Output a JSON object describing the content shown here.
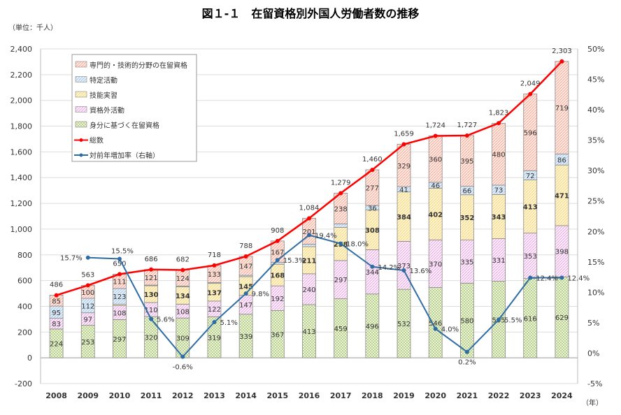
{
  "chart_data": {
    "type": "bar",
    "title": "図１-１　在留資格別外国人労働者数の推移",
    "unit_label": "（単位：千人）",
    "x_unit": "（年）",
    "categories": [
      "2008",
      "2009",
      "2010",
      "2011",
      "2012",
      "2013",
      "2014",
      "2015",
      "2016",
      "2017",
      "2018",
      "2019",
      "2020",
      "2021",
      "2022",
      "2023",
      "2024"
    ],
    "ylim": [
      -200,
      2400
    ],
    "y_ticks": [
      -200,
      0,
      200,
      400,
      600,
      800,
      1000,
      1200,
      1400,
      1600,
      1800,
      2000,
      2200,
      2400
    ],
    "y2lim": [
      -5,
      50
    ],
    "y2_ticks": [
      -5,
      0,
      5,
      10,
      15,
      20,
      25,
      30,
      35,
      40,
      45,
      50
    ],
    "legend_position": "top-left",
    "grid": true,
    "stacked_series": [
      {
        "name": "身分に基づく在留資格",
        "color": "#9bbb59",
        "values": [
          224,
          253,
          297,
          320,
          309,
          319,
          339,
          367,
          413,
          459,
          496,
          532,
          546,
          580,
          595,
          616,
          629
        ],
        "labeled": [
          true,
          true,
          true,
          true,
          true,
          true,
          true,
          true,
          true,
          true,
          true,
          true,
          true,
          true,
          true,
          true,
          true
        ]
      },
      {
        "name": "資格外活動",
        "color": "#e59edd",
        "values": [
          83,
          97,
          108,
          110,
          108,
          122,
          147,
          192,
          240,
          297,
          344,
          373,
          370,
          335,
          331,
          353,
          398
        ],
        "labeled": [
          true,
          true,
          true,
          true,
          true,
          true,
          true,
          true,
          true,
          true,
          true,
          true,
          true,
          true,
          true,
          true,
          true
        ]
      },
      {
        "name": "技能実習",
        "color": "#f2d675",
        "values": [
          0,
          0,
          11,
          130,
          134,
          137,
          145,
          168,
          211,
          258,
          308,
          384,
          402,
          352,
          343,
          413,
          471
        ],
        "labeled": [
          false,
          false,
          false,
          true,
          true,
          true,
          true,
          true,
          true,
          true,
          true,
          true,
          true,
          true,
          true,
          true,
          true
        ]
      },
      {
        "name": "特定活動",
        "color": "#9dc3e6",
        "values": [
          95,
          112,
          123,
          5,
          7,
          7,
          10,
          14,
          19,
          27,
          36,
          41,
          46,
          66,
          73,
          72,
          86
        ],
        "labeled": [
          true,
          true,
          true,
          false,
          false,
          false,
          false,
          false,
          false,
          false,
          true,
          true,
          true,
          true,
          true,
          true,
          true
        ]
      },
      {
        "name": "専門的・技術的分野の在留資格",
        "color": "#f4a08a",
        "values": [
          85,
          100,
          111,
          121,
          124,
          133,
          147,
          167,
          201,
          238,
          277,
          329,
          360,
          395,
          480,
          596,
          719
        ],
        "labeled": [
          true,
          true,
          true,
          true,
          true,
          true,
          true,
          true,
          true,
          true,
          true,
          true,
          true,
          true,
          true,
          true,
          true
        ]
      }
    ],
    "legend_order": [
      "専門的・技術的分野の在留資格",
      "特定活動",
      "技能実習",
      "資格外活動",
      "身分に基づく在留資格",
      "総数",
      "対前年増加率（右軸）"
    ],
    "total": {
      "name": "総数",
      "color": "#ff0000",
      "values": [
        486,
        563,
        650,
        686,
        682,
        718,
        788,
        908,
        1084,
        1279,
        1460,
        1659,
        1724,
        1727,
        1823,
        2049,
        2303
      ],
      "labels": [
        "486",
        "563",
        "650",
        "686",
        "682",
        "718",
        "788",
        "908",
        "1,084",
        "1,279",
        "1,460",
        "1,659",
        "1,724",
        "1,727",
        "1,823",
        "2,049",
        "2,303"
      ]
    },
    "growth": {
      "name": "対前年増加率（右軸）",
      "color": "#2e6da4",
      "values": [
        null,
        15.7,
        15.5,
        5.6,
        -0.6,
        5.1,
        9.8,
        15.3,
        19.4,
        18.0,
        14.2,
        13.6,
        4.0,
        0.2,
        5.5,
        12.4,
        12.4
      ],
      "labels": [
        null,
        "15.7%",
        "15.5%",
        "5.6%",
        "-0.6%",
        "5.1%",
        "9.8%",
        "15.3%",
        "19.4%",
        "18.0%",
        "14.2%",
        "13.6%",
        "4.0%",
        "0.2%",
        "5.5%",
        "12.4%",
        "12.4%"
      ]
    }
  }
}
